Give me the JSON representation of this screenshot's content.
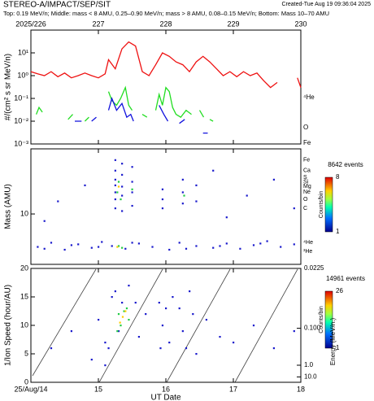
{
  "header": {
    "title": "STEREO-A/IMPACT/SEP/SIT",
    "created": "Created-Tue Aug 19 09:36:04 2025",
    "subtitle": "Top: 0.19 MeV/n; Middle: mass < 8 AMU, 0.25–0.90 MeV/n; mass > 8 AMU, 0.08–0.15 MeV/n; Bottom: Mass 10–70 AMU"
  },
  "chart_data": [
    {
      "type": "line",
      "ylabel": "#/(cm² s sr MeV/n)",
      "ylog": true,
      "xlim": [
        226,
        230
      ],
      "xticks": [
        {
          "value": 226,
          "label": "2025/226"
        },
        227,
        228,
        229,
        230
      ],
      "ylim": [
        0.001,
        100
      ],
      "yticks": [
        {
          "value": 0.001,
          "label": "10⁻³"
        },
        {
          "value": 0.01,
          "label": "10⁻²"
        },
        {
          "value": 0.1,
          "label": "10⁻¹"
        },
        {
          "value": 1,
          "label": "10⁰"
        },
        {
          "value": 10,
          "label": "10¹"
        }
      ],
      "series": [
        {
          "name": "⁴He",
          "color": "#ee1111",
          "x": [
            226.0,
            226.1,
            226.2,
            226.3,
            226.4,
            226.5,
            226.6,
            226.7,
            226.8,
            226.9,
            227.0,
            227.1,
            227.15,
            227.25,
            227.35,
            227.45,
            227.55,
            227.65,
            227.75,
            227.85,
            227.95,
            228.05,
            228.15,
            228.25,
            228.35,
            228.45,
            228.55,
            228.65,
            228.75,
            228.85,
            228.95,
            229.05,
            229.15,
            229.25,
            229.35,
            229.45,
            229.55,
            229.65,
            229.8,
            229.95,
            230.0
          ],
          "values": [
            1.5,
            1.2,
            1.0,
            1.5,
            0.9,
            1.3,
            0.8,
            1.0,
            1.3,
            1.0,
            0.8,
            1.2,
            5,
            2,
            15,
            30,
            20,
            1.5,
            1.0,
            3,
            10,
            7,
            4,
            3,
            1.5,
            4,
            7,
            4,
            2,
            1,
            1.5,
            0.9,
            1.5,
            1,
            1.3,
            0.6,
            0.3,
            0.5,
            null,
            0.8,
            0.3
          ]
        },
        {
          "name": "O",
          "color": "#22dd22",
          "x": [
            226.08,
            226.12,
            226.17,
            226.22,
            226.55,
            226.62,
            226.7,
            226.8,
            226.86,
            226.9,
            227.05,
            227.1,
            227.15,
            227.2,
            227.27,
            227.33,
            227.4,
            227.45,
            227.5,
            227.55,
            227.65,
            227.72,
            227.78,
            227.85,
            227.9,
            227.95,
            228.0,
            228.05,
            228.1,
            228.15,
            228.22,
            228.3,
            228.38,
            228.42,
            228.5,
            228.56,
            228.6,
            228.65,
            228.7
          ],
          "values": [
            0.02,
            0.04,
            0.025,
            null,
            0.012,
            0.02,
            null,
            0.01,
            0.015,
            null,
            0.015,
            null,
            0.2,
            0.08,
            0.05,
            0.1,
            0.3,
            0.05,
            0.03,
            null,
            0.02,
            0.015,
            null,
            0.03,
            0.15,
            0.05,
            0.3,
            0.2,
            0.04,
            0.02,
            0.015,
            0.03,
            0.02,
            null,
            0.03,
            0.015,
            null,
            0.012,
            0.01
          ]
        },
        {
          "name": "Fe",
          "color": "#1111dd",
          "x": [
            226.65,
            226.75,
            226.8,
            226.9,
            226.97,
            227.0,
            227.15,
            227.2,
            227.27,
            227.35,
            227.42,
            227.48,
            227.52,
            227.6,
            227.9,
            227.97,
            228.03,
            228.08,
            228.2,
            228.28,
            228.35,
            228.55,
            228.62,
            228.7,
            228.8,
            228.9,
            228.96
          ],
          "values": [
            0.01,
            0.01,
            null,
            0.01,
            0.015,
            null,
            0.03,
            0.1,
            0.03,
            0.06,
            0.015,
            0.02,
            0.01,
            null,
            0.05,
            0.02,
            0.01,
            null,
            0.008,
            0.012,
            null,
            0.003,
            0.003,
            null,
            0.005,
            null,
            0.004
          ]
        }
      ]
    },
    {
      "type": "scatter",
      "ylabel": "Mass (AMU)",
      "ylog": true,
      "xlim": [
        14,
        18
      ],
      "xticks": [
        14,
        15,
        16,
        17,
        18
      ],
      "ylim": [
        2,
        80
      ],
      "yticks": [
        10
      ],
      "annotations": [
        {
          "text": "Fe",
          "y": 56
        },
        {
          "text": "Ca",
          "y": 40
        },
        {
          "text": "S",
          "y": 32
        },
        {
          "text": "Si",
          "y": 28
        },
        {
          "text": "Mg",
          "y": 24
        },
        {
          "text": "Ne",
          "y": 20
        },
        {
          "text": "O",
          "y": 16
        },
        {
          "text": "C",
          "y": 12
        },
        {
          "text": "⁴He",
          "y": 4
        },
        {
          "text": "³He",
          "y": 3
        }
      ],
      "colorbar": {
        "events": "8642 events",
        "label": "Counts/bin",
        "ticks": [
          1,
          8
        ]
      },
      "series": [
        {
          "color": "#1a1acc",
          "x": [
            14.1,
            14.3,
            14.5,
            14.7,
            14.9,
            15.05,
            15.2,
            15.4,
            15.6,
            15.8,
            16.05,
            16.2,
            16.45,
            16.7,
            16.9,
            17.1,
            17.3,
            17.5,
            17.7,
            17.9,
            14.2,
            14.6,
            15.0,
            15.5,
            16.3,
            16.8,
            17.4,
            15.25,
            15.25,
            15.25,
            15.25,
            15.25,
            15.25,
            15.25,
            15.35,
            15.35,
            15.35,
            15.35,
            15.35,
            15.5,
            15.5,
            15.5,
            15.5,
            15.95,
            15.95,
            15.95,
            16.25,
            16.25,
            16.25,
            16.45,
            16.45,
            14.4,
            14.8,
            17.2,
            17.6,
            16.7,
            17.9,
            14.2,
            16.9
          ],
          "values": [
            3.5,
            4.0,
            3.2,
            3.8,
            3.4,
            4.1,
            3.6,
            3.3,
            3.9,
            3.5,
            3.2,
            4.0,
            3.6,
            3.4,
            3.9,
            3.3,
            3.7,
            4.2,
            3.5,
            3.8,
            3.3,
            3.7,
            3.5,
            4.0,
            3.3,
            3.6,
            3.9,
            12,
            16,
            20,
            25,
            30,
            40,
            56,
            11,
            18,
            24,
            35,
            50,
            13,
            20,
            28,
            45,
            12,
            16,
            22,
            14,
            20,
            30,
            15,
            25,
            15,
            25,
            18,
            30,
            40,
            12,
            8,
            9
          ]
        },
        {
          "color": "#22cc44",
          "x": [
            15.28,
            15.3,
            15.33,
            15.5,
            16.27,
            15.3,
            15.35
          ],
          "values": [
            20,
            28,
            16,
            22,
            18,
            3.6,
            3.4
          ]
        },
        {
          "color": "#ffcc00",
          "x": [
            15.3,
            15.28
          ],
          "values": [
            24,
            3.5
          ]
        }
      ]
    },
    {
      "type": "scatter",
      "ylabel": "1/Ion Speed (hour/AU)",
      "xlabel": "UT Date",
      "xlim": [
        14,
        18
      ],
      "xticks": [
        {
          "value": 14,
          "label": "25/Aug/14"
        },
        15,
        16,
        17,
        18
      ],
      "ylim": [
        0,
        20
      ],
      "yticks": [
        0,
        5,
        10,
        15,
        20
      ],
      "y2label": "Energy (MeV/n.)",
      "y2ticks": [
        0.0225,
        {
          "value": 0.1,
          "label": "0.100"
        },
        {
          "value": 1,
          "label": "1.0"
        },
        {
          "value": 10,
          "label": "10.0"
        }
      ],
      "colorbar": {
        "events": "14961 events",
        "label": "Counts/bin",
        "ticks": [
          1,
          26
        ]
      },
      "series": [
        {
          "color": "#1a1acc",
          "x": [
            14.3,
            14.6,
            14.9,
            15.0,
            15.1,
            15.15,
            15.2,
            15.25,
            15.3,
            15.45,
            15.55,
            15.6,
            15.7,
            15.9,
            15.92,
            15.95,
            16.0,
            16.05,
            16.2,
            16.25,
            16.3,
            16.4,
            16.45,
            16.6,
            16.8,
            17.0,
            17.3,
            17.6,
            17.9,
            15.1,
            15.35,
            16.1,
            16.35
          ],
          "values": [
            6,
            9,
            4,
            11,
            7,
            6,
            15,
            16,
            9,
            17,
            14,
            8,
            12,
            14,
            6,
            10,
            13,
            7,
            13,
            9,
            6,
            12,
            5,
            11,
            8,
            7,
            10,
            6,
            9,
            3,
            14,
            15,
            16
          ]
        },
        {
          "color": "#22cc44",
          "x": [
            15.3,
            15.33,
            15.38,
            15.42,
            15.28,
            15.45
          ],
          "values": [
            12,
            10,
            12.5,
            13,
            9,
            11
          ]
        },
        {
          "color": "#ffcc00",
          "x": [
            15.36,
            15.4,
            15.32
          ],
          "values": [
            11.5,
            12.5,
            10.5
          ]
        }
      ]
    }
  ]
}
